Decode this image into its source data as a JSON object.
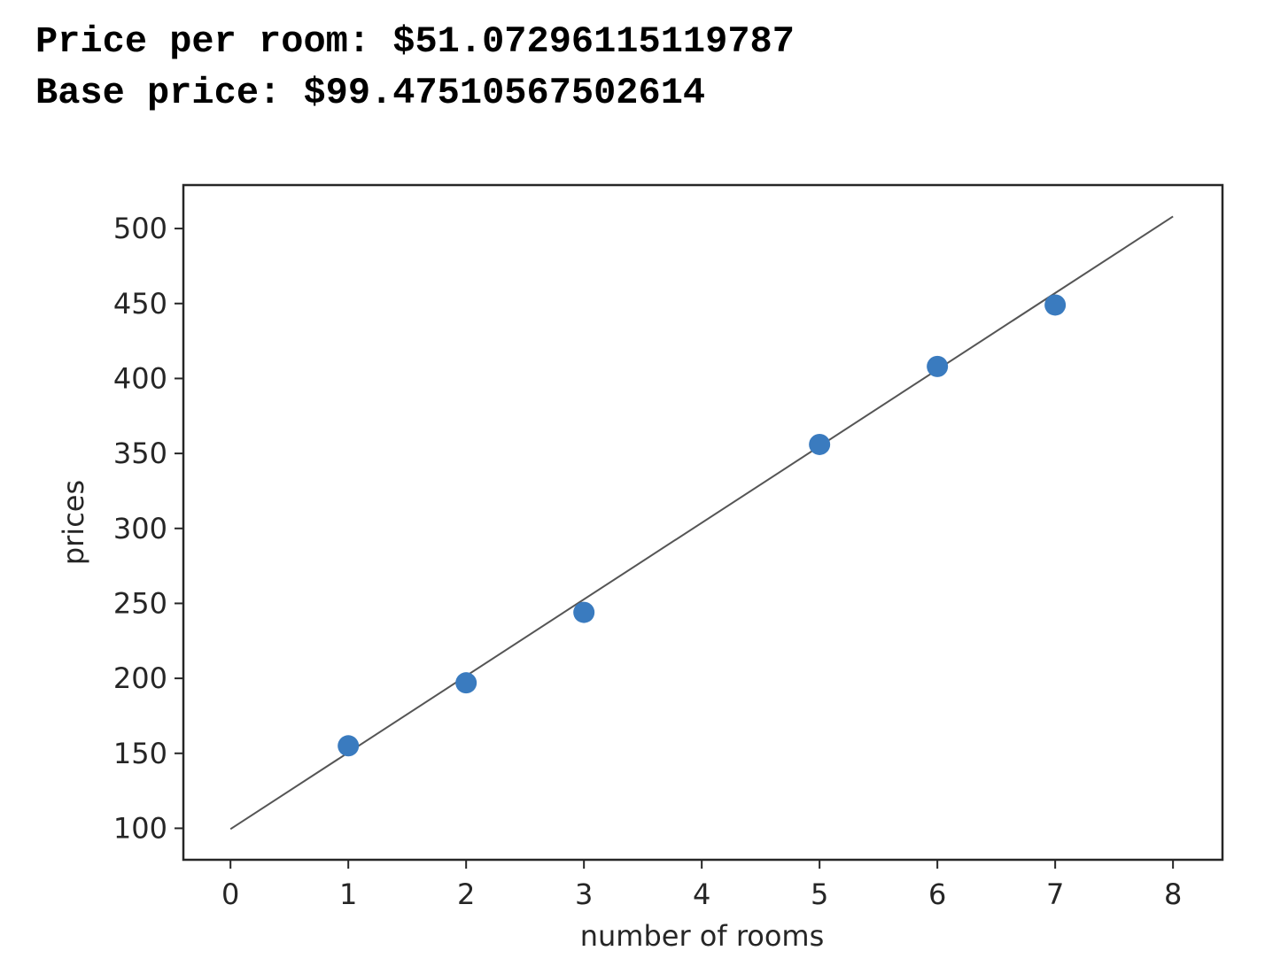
{
  "output": {
    "line1": "Price per room: $51.07296115119787",
    "line2": "Base price: $99.47510567502614"
  },
  "chart_data": {
    "type": "scatter",
    "xlabel": "number of rooms",
    "ylabel": "prices",
    "xlim": [
      -0.4,
      8.42
    ],
    "ylim": [
      79,
      529
    ],
    "x_ticks": [
      0,
      1,
      2,
      3,
      4,
      5,
      6,
      7,
      8
    ],
    "y_ticks": [
      100,
      150,
      200,
      250,
      300,
      350,
      400,
      450,
      500
    ],
    "points": [
      {
        "x": 1,
        "y": 155
      },
      {
        "x": 2,
        "y": 197
      },
      {
        "x": 3,
        "y": 244
      },
      {
        "x": 5,
        "y": 356
      },
      {
        "x": 6,
        "y": 408
      },
      {
        "x": 7,
        "y": 449
      }
    ],
    "fit_line": {
      "slope": 51.07296115119787,
      "intercept": 99.47510567502614,
      "x_range": [
        0,
        8
      ]
    },
    "colors": {
      "points": "#3a7bbf",
      "line": "#555555",
      "frame": "#262626"
    },
    "grid": false,
    "legend": "none"
  }
}
